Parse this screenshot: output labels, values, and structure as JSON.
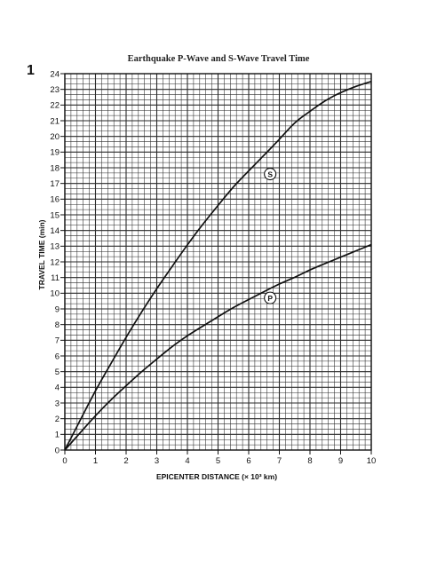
{
  "page_mark": "1",
  "chart_data": {
    "type": "line",
    "title": "Earthquake P-Wave and S-Wave Travel Time",
    "xlabel": "EPICENTER DISTANCE (× 10³ km)",
    "ylabel": "TRAVEL TIME (min)",
    "xlim": [
      0,
      10
    ],
    "ylim": [
      0,
      24
    ],
    "x_ticks": [
      "0",
      "1",
      "2",
      "3",
      "4",
      "5",
      "6",
      "7",
      "8",
      "9",
      "10"
    ],
    "y_ticks": [
      "0",
      "1",
      "2",
      "3",
      "4",
      "5",
      "6",
      "7",
      "8",
      "9",
      "10",
      "11",
      "12",
      "13",
      "14",
      "15",
      "16",
      "17",
      "18",
      "19",
      "20",
      "21",
      "22",
      "23",
      "24"
    ],
    "grid": true,
    "minor_divisions": {
      "x": 5,
      "y": 3
    },
    "series": [
      {
        "name": "S",
        "x": [
          0,
          0.5,
          1,
          1.5,
          2,
          2.5,
          3,
          3.5,
          4,
          4.5,
          5,
          5.5,
          6,
          6.5,
          7,
          7.5,
          8,
          8.5,
          9,
          9.5,
          10
        ],
        "y": [
          0,
          1.9,
          3.8,
          5.5,
          7.2,
          8.8,
          10.3,
          11.7,
          13.1,
          14.4,
          15.6,
          16.8,
          17.8,
          18.8,
          19.8,
          20.9,
          21.6,
          22.3,
          22.8,
          23.2,
          23.5
        ]
      },
      {
        "name": "P",
        "x": [
          0,
          0.5,
          1,
          1.5,
          2,
          2.5,
          3,
          3.5,
          4,
          4.5,
          5,
          5.5,
          6,
          6.5,
          7,
          7.5,
          8,
          8.5,
          9,
          9.5,
          10
        ],
        "y": [
          0,
          1.1,
          2.2,
          3.2,
          4.1,
          5.0,
          5.8,
          6.6,
          7.3,
          7.9,
          8.5,
          9.1,
          9.6,
          10.1,
          10.6,
          11.0,
          11.5,
          11.9,
          12.3,
          12.7,
          13.1
        ]
      }
    ],
    "annotations": [
      {
        "text": "S",
        "x": 6.7,
        "y": 17.6
      },
      {
        "text": "P",
        "x": 6.7,
        "y": 9.7
      }
    ],
    "line_color": "#111111",
    "grid_color": "#2a2a2a"
  }
}
